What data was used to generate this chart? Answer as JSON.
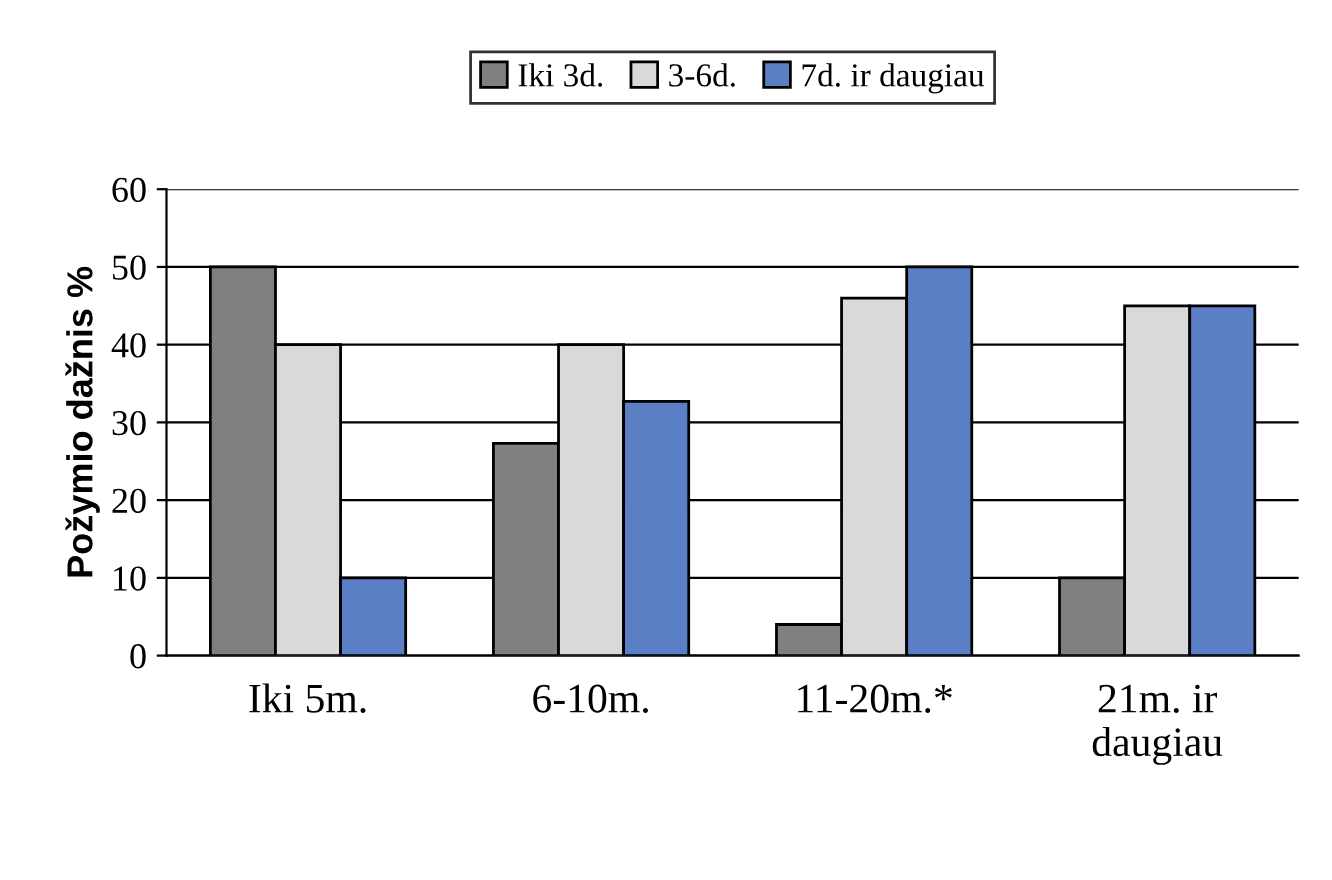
{
  "chart_data": {
    "type": "bar",
    "ylabel": "Požymio dažnis %",
    "categories": [
      "Iki 5m.",
      "6-10m.",
      "11-20m.*",
      "21m. ir daugiau"
    ],
    "series": [
      {
        "name": "Iki 3d.",
        "color": "#808080",
        "values": [
          50,
          27.3,
          4,
          10
        ]
      },
      {
        "name": "3-6d.",
        "color": "#d9d9d9",
        "values": [
          40,
          40,
          46,
          45
        ]
      },
      {
        "name": "7d. ir daugiau",
        "color": "#5b7fc4",
        "values": [
          10,
          32.7,
          50,
          45
        ]
      }
    ],
    "ylim": [
      0,
      60
    ],
    "yticks": [
      0,
      10,
      20,
      30,
      40,
      50,
      60
    ],
    "grid": "y",
    "legend": "top"
  }
}
